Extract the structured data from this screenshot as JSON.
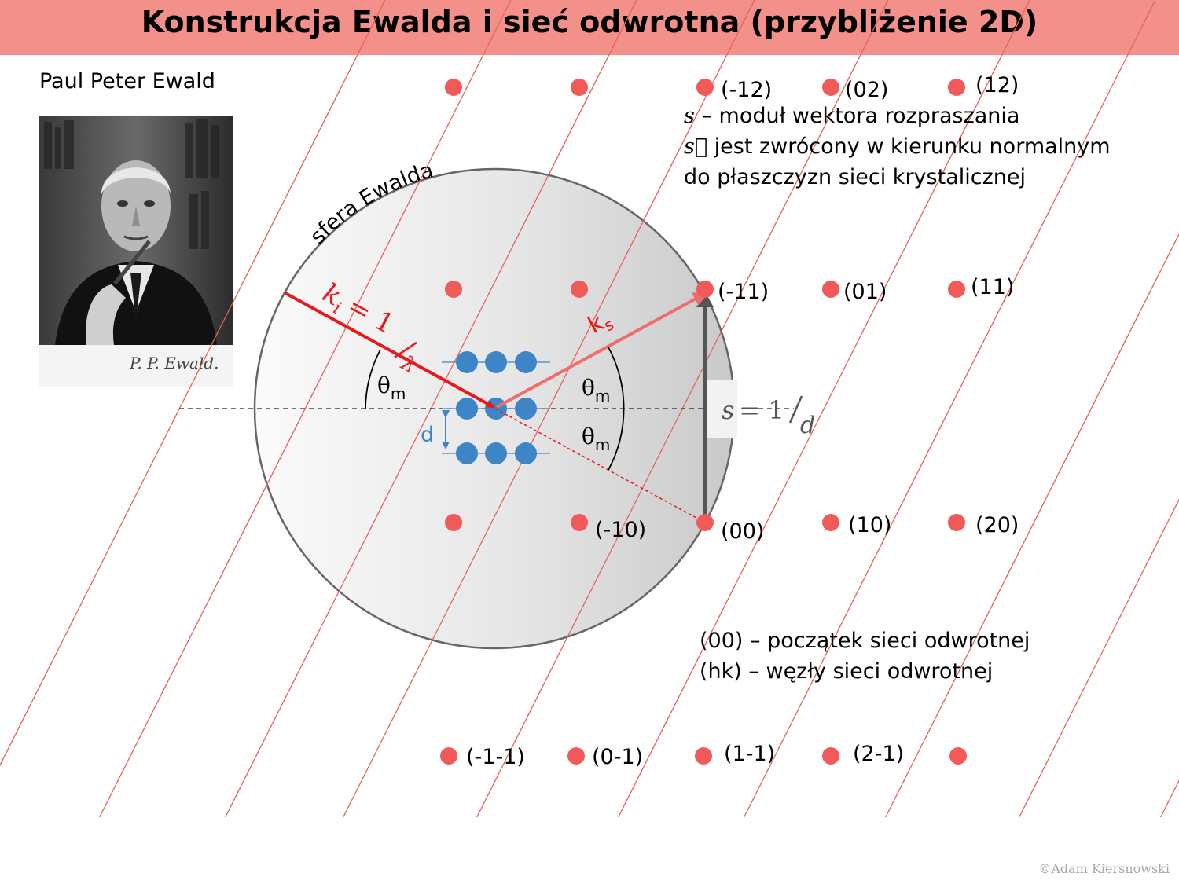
{
  "title": "Konstrukcja Ewalda i sieć odwrotna (przybliżenie 2D)",
  "portrait": {
    "caption": "Paul Peter Ewald",
    "signature": "P. P. Ewald."
  },
  "sphere_label": "sfera Ewalda",
  "vectors": {
    "ki_symbol": "k",
    "ki_sub": "i",
    "ki_eq": "= 1",
    "ki_den": "λ",
    "ks_symbol": "k",
    "ks_sub": "s",
    "s_symbol": "s",
    "s_eq": "= 1",
    "s_den": "d",
    "d_label": "d"
  },
  "angles": {
    "theta": "θ",
    "sub": "m"
  },
  "notes_top": {
    "line1_sym": "s",
    "line1_text": "– moduł wektora rozpraszania",
    "line2_sym": "s⃗",
    "line2_text": "jest zwrócony w kierunku normalnym",
    "line3_text": "do płaszczyzn sieci krystalicznej"
  },
  "notes_bottom": {
    "line1": "(00) – początek sieci odwrotnej",
    "line2": "(hk) – węzły sieci odwrotnej"
  },
  "reciprocal_nodes": [
    {
      "h": -2,
      "k": 2,
      "label": ""
    },
    {
      "h": -1,
      "k": 2,
      "label": ""
    },
    {
      "h": 0,
      "k": 2,
      "label": "(-12)"
    },
    {
      "h": 1,
      "k": 2,
      "label": "(02)"
    },
    {
      "h": 2,
      "k": 2,
      "label": "(12)"
    },
    {
      "h": -2,
      "k": 1,
      "label": ""
    },
    {
      "h": -1,
      "k": 1,
      "label": ""
    },
    {
      "h": 0,
      "k": 1,
      "label": "(-11)"
    },
    {
      "h": 1,
      "k": 1,
      "label": "(01)"
    },
    {
      "h": 2,
      "k": 1,
      "label": "(11)"
    },
    {
      "h": -2,
      "k": 0,
      "label": ""
    },
    {
      "h": -1,
      "k": 0,
      "label": "(-10)"
    },
    {
      "h": 0,
      "k": 0,
      "label": "(00)"
    },
    {
      "h": 1,
      "k": 0,
      "label": "(10)"
    },
    {
      "h": 2,
      "k": 0,
      "label": "(20)"
    },
    {
      "h": -2,
      "k": -1,
      "label": "(-1-1)"
    },
    {
      "h": -1,
      "k": -1,
      "label": "(0-1)"
    },
    {
      "h": 0,
      "k": -1,
      "label": "(1-1)"
    },
    {
      "h": 1,
      "k": -1,
      "label": "(2-1)"
    },
    {
      "h": 2,
      "k": -1,
      "label": ""
    }
  ],
  "copyright": "©Adam Kiersnowski",
  "colors": {
    "title_bar": "#f4908a",
    "node": "#f25a5a",
    "ki": "#e8191b",
    "ks": "#ef6d6d",
    "atoms": "#3d85c6",
    "lattice_lines": "#e8605a"
  }
}
